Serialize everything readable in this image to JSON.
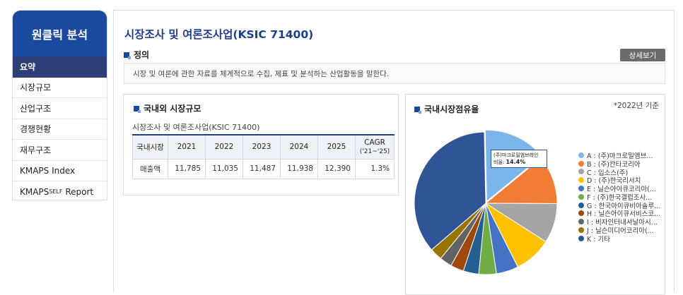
{
  "sidebar": {
    "title": "원클릭 분석",
    "items": [
      {
        "label": "요약",
        "active": true
      },
      {
        "label": "시장규모"
      },
      {
        "label": "산업구조"
      },
      {
        "label": "경쟁현황"
      },
      {
        "label": "재무구조"
      },
      {
        "label": "KMAPS Index"
      },
      {
        "label": "KMAPS",
        "sup": "SELF",
        "suffix": " Report"
      }
    ]
  },
  "main": {
    "title": "시장조사 및 여론조사업(KSIC 71400)",
    "definition": {
      "heading": "정의",
      "detail_button": "상세보기",
      "text": "시장 및 여론에 관한 자료를 체계적으로 수집, 제표 및 분석하는 산업활동을 말한다."
    },
    "market_size": {
      "heading": "국내외 시장규모",
      "subtitle": "시장조사 및 여론조사업(KSIC 71400)",
      "table": {
        "row_header": "국내시장",
        "years": [
          "2021",
          "2022",
          "2023",
          "2024",
          "2025"
        ],
        "cagr_label": "CAGR",
        "cagr_period": "('21~'25)",
        "row_label": "매출액",
        "values": [
          "11,785",
          "11,035",
          "11,487",
          "11,938",
          "12,390"
        ],
        "cagr_value": "1.3%"
      }
    },
    "share": {
      "heading": "국내시장점유율",
      "basis": "*2022년 기준",
      "tooltip": {
        "name": "(주)마크로밀엠브레인",
        "ratio_label": "비율:",
        "ratio_value": "14.4%"
      }
    }
  },
  "chart_data": {
    "type": "pie",
    "title": "국내시장점유율",
    "legend_position": "right",
    "slices": [
      {
        "label": "A : (주)마크로밀엠브...",
        "value": 14.4,
        "color": "#7cb5ec"
      },
      {
        "label": "B : (주)칸타코리아",
        "value": 11.0,
        "color": "#f07c35"
      },
      {
        "label": "C : 입소스(주)",
        "value": 9.0,
        "color": "#a5a5a5"
      },
      {
        "label": "D : (주)한국리서치",
        "value": 8.5,
        "color": "#ffc000"
      },
      {
        "label": "E : 닐슨아이큐코리아(...",
        "value": 5.0,
        "color": "#4472c4"
      },
      {
        "label": "F : (주)한국갤럽조사...",
        "value": 4.0,
        "color": "#70ad47"
      },
      {
        "label": "G : 한국아이큐비아솔루...",
        "value": 3.5,
        "color": "#255e91"
      },
      {
        "label": "H : 닐슨아이큐서비스코...",
        "value": 3.0,
        "color": "#9e480e"
      },
      {
        "label": "I : 비자인터내셔날아시...",
        "value": 2.8,
        "color": "#636363"
      },
      {
        "label": "J : 닐슨미디어코리아(...",
        "value": 2.8,
        "color": "#997300"
      },
      {
        "label": "K : 기타",
        "value": 36.0,
        "color": "#2f5597"
      }
    ]
  }
}
